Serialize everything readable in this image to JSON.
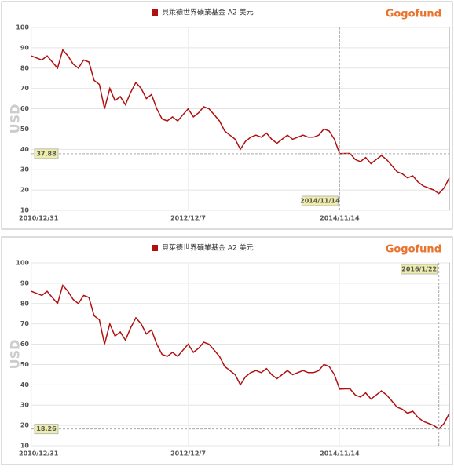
{
  "chart_data": [
    {
      "type": "line",
      "title": "貝萊德世界礦業基金 A2 美元",
      "brand": "Gogofund",
      "ylabel": "USD",
      "categories": [
        "2010/12/31",
        null,
        null,
        null,
        null,
        null,
        null,
        null,
        null,
        null,
        null,
        null,
        null,
        null,
        null,
        null,
        null,
        null,
        null,
        null,
        null,
        null,
        null,
        null,
        null,
        null,
        null,
        null,
        null,
        null,
        "2012/12/7",
        null,
        null,
        null,
        null,
        null,
        null,
        null,
        null,
        null,
        null,
        null,
        null,
        null,
        null,
        null,
        null,
        null,
        null,
        null,
        null,
        null,
        null,
        null,
        null,
        null,
        null,
        null,
        null,
        "2014/11/14",
        null,
        null,
        null,
        null,
        null,
        null,
        null,
        null,
        null,
        null,
        null,
        null,
        null,
        null,
        null,
        null,
        null,
        null,
        null,
        null,
        null
      ],
      "series": [
        {
          "name": "貝萊德世界礦業基金 A2 美元",
          "color": "#b01010",
          "values": [
            86,
            85,
            84,
            86,
            83,
            80,
            89,
            86,
            82,
            80,
            84,
            83,
            74,
            72,
            60,
            70,
            64,
            66,
            62,
            68,
            73,
            70,
            65,
            67,
            60,
            55,
            54,
            56,
            54,
            57,
            60,
            56,
            58,
            61,
            60,
            57,
            54,
            49,
            47,
            45,
            40,
            44,
            46,
            47,
            46,
            48,
            45,
            43,
            45,
            47,
            45,
            46,
            47,
            46,
            46,
            47,
            50,
            49,
            45,
            37.88,
            38,
            38,
            35,
            34,
            36,
            33,
            35,
            37,
            35,
            32,
            29,
            28,
            26,
            27,
            24,
            22,
            21,
            20,
            18.26,
            21,
            26
          ]
        }
      ],
      "ylim": [
        10,
        100
      ],
      "yticks": [
        10,
        20,
        30,
        40,
        50,
        60,
        70,
        80,
        90,
        100
      ],
      "grid": true,
      "crosshair_x": "2014/11/14",
      "crosshair_y": 37.88
    },
    {
      "type": "line",
      "title": "貝萊德世界礦業基金 A2 美元",
      "brand": "Gogofund",
      "ylabel": "USD",
      "categories": [
        "2010/12/31",
        null,
        null,
        null,
        null,
        null,
        null,
        null,
        null,
        null,
        null,
        null,
        null,
        null,
        null,
        null,
        null,
        null,
        null,
        null,
        null,
        null,
        null,
        null,
        null,
        null,
        null,
        null,
        null,
        null,
        "2012/12/7",
        null,
        null,
        null,
        null,
        null,
        null,
        null,
        null,
        null,
        null,
        null,
        null,
        null,
        null,
        null,
        null,
        null,
        null,
        null,
        null,
        null,
        null,
        null,
        null,
        null,
        null,
        null,
        null,
        "2014/11/14",
        null,
        null,
        null,
        null,
        null,
        null,
        null,
        null,
        null,
        null,
        null,
        null,
        null,
        null,
        null,
        null,
        null,
        null,
        null,
        null,
        null
      ],
      "series": [
        {
          "name": "貝萊德世界礦業基金 A2 美元",
          "color": "#b01010",
          "values": [
            86,
            85,
            84,
            86,
            83,
            80,
            89,
            86,
            82,
            80,
            84,
            83,
            74,
            72,
            60,
            70,
            64,
            66,
            62,
            68,
            73,
            70,
            65,
            67,
            60,
            55,
            54,
            56,
            54,
            57,
            60,
            56,
            58,
            61,
            60,
            57,
            54,
            49,
            47,
            45,
            40,
            44,
            46,
            47,
            46,
            48,
            45,
            43,
            45,
            47,
            45,
            46,
            47,
            46,
            46,
            47,
            50,
            49,
            45,
            37.88,
            38,
            38,
            35,
            34,
            36,
            33,
            35,
            37,
            35,
            32,
            29,
            28,
            26,
            27,
            24,
            22,
            21,
            20,
            18.26,
            21,
            26
          ]
        }
      ],
      "ylim": [
        10,
        100
      ],
      "yticks": [
        10,
        20,
        30,
        40,
        50,
        60,
        70,
        80,
        90,
        100
      ],
      "grid": true,
      "crosshair_x": "2016/1/22",
      "crosshair_y": 18.26
    }
  ]
}
